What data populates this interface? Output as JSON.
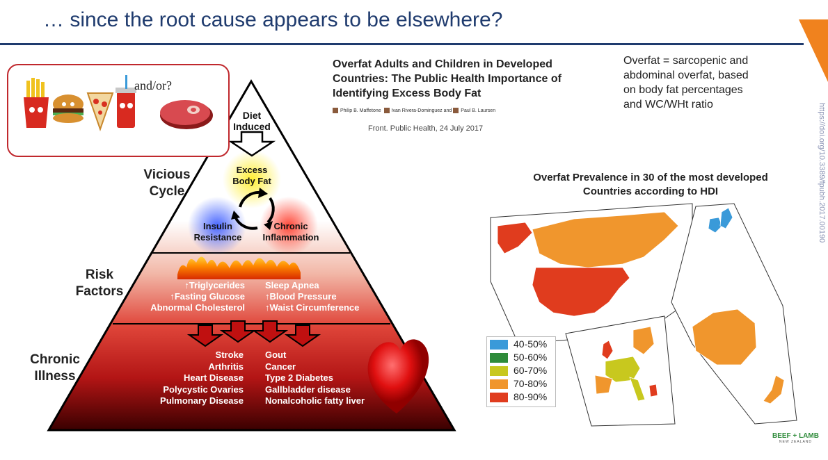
{
  "slide": {
    "title": "… since the root cause appears to be elsewhere?"
  },
  "food_box": {
    "and_or": "and/or?",
    "icons": [
      "fries-icon",
      "burger-icon",
      "pizza-icon",
      "soda-icon",
      "steak-icon"
    ]
  },
  "pyramid": {
    "apex": {
      "line1": "Diet",
      "line2": "Induced"
    },
    "excess": {
      "line1": "Excess",
      "line2": "Body Fat"
    },
    "insulin": {
      "line1": "Insulin",
      "line2": "Resistance"
    },
    "chronic_inflammation": {
      "line1": "Chronic",
      "line2": "Inflammation"
    },
    "vicious_cycle_label": {
      "line1": "Vicious",
      "line2": "Cycle"
    },
    "risk_factors_label": {
      "line1": "Risk",
      "line2": "Factors"
    },
    "chronic_illness_label": {
      "line1": "Chronic",
      "line2": "Illness"
    },
    "risk_left": [
      "Triglycerides",
      "Fasting Glucose",
      "Abnormal Cholesterol"
    ],
    "risk_right": [
      "Sleep Apnea",
      "Blood Pressure",
      "Waist Circumference"
    ],
    "illness_left": [
      "Stroke",
      "Arthritis",
      "Heart Disease",
      "Polycystic Ovaries",
      "Pulmonary Disease"
    ],
    "illness_right": [
      "Gout",
      "Cancer",
      "Type 2 Diabetes",
      "Gallbladder disease",
      "Nonalcoholic fatty liver"
    ],
    "colors": {
      "top": "#ffffff",
      "middle": "#e85a4a",
      "bottom": "#3a0000"
    }
  },
  "paper": {
    "title": "Overfat Adults and Children in Developed Countries: The Public Health Importance of Identifying Excess Body Fat",
    "authors": [
      "Philip B. Maffetone",
      "Ivan Rivera-Dominguez",
      "and",
      "Paul B. Laursen"
    ],
    "journal": "Front. Public Health, 24 July 2017"
  },
  "definition": {
    "text": "Overfat = sarcopenic and abdominal overfat, based on body fat percentages and WC/WHt ratio"
  },
  "doi": "https://doi.org/10.3389/fpubh.2017.00190",
  "map": {
    "title": "Overfat Prevalence in 30 of the most developed Countries according to HDI",
    "legend": [
      {
        "label": "40-50%",
        "color": "#3a9ad9"
      },
      {
        "label": "50-60%",
        "color": "#2e8b3a"
      },
      {
        "label": "60-70%",
        "color": "#c8c81e"
      },
      {
        "label": "70-80%",
        "color": "#f0962d"
      },
      {
        "label": "80-90%",
        "color": "#e03c1e"
      }
    ],
    "regions": [
      "north-america",
      "europe",
      "east-asia-australia"
    ]
  },
  "brand": {
    "name": "BEEF + LAMB",
    "sub": "NEW ZEALAND"
  }
}
